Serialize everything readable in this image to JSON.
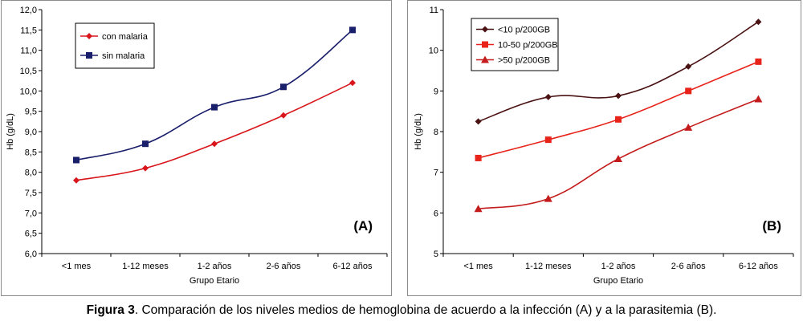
{
  "charts": [
    {
      "id": "A",
      "panel_label": "(A)",
      "type": "line",
      "xlabel": "Grupo Etario",
      "ylabel": "Hb (g/dL)",
      "ylim": [
        6.0,
        12.0
      ],
      "y_ticks": [
        "6,0",
        "6,5",
        "7,0",
        "7,5",
        "8,0",
        "8,5",
        "9,0",
        "9,5",
        "10,0",
        "10,5",
        "11,0",
        "11,5",
        "12,0"
      ],
      "categories": [
        "<1 mes",
        "1-12 meses",
        "1-2 años",
        "2-6 años",
        "6-12 años"
      ],
      "grid": false,
      "legend_position": "top-left",
      "series": [
        {
          "name": "con malaria",
          "color": "#d8161b",
          "marker": "diamond",
          "values": [
            7.8,
            8.1,
            8.7,
            9.4,
            10.2
          ]
        },
        {
          "name": "sin malaria",
          "color": "#1a1f6b",
          "marker": "square",
          "values": [
            8.3,
            8.7,
            9.6,
            10.1,
            11.5
          ]
        }
      ]
    },
    {
      "id": "B",
      "panel_label": "(B)",
      "type": "line",
      "xlabel": "Grupo Etario",
      "ylabel": "Hb (g/dL)",
      "ylim": [
        5,
        11
      ],
      "y_ticks": [
        "5",
        "6",
        "7",
        "8",
        "9",
        "10",
        "11"
      ],
      "categories": [
        "<1 mes",
        "1-12 meses",
        "1-2 años",
        "2-6 años",
        "6-12 años"
      ],
      "grid": false,
      "legend_position": "top-left",
      "series": [
        {
          "name": "<10 p/200GB",
          "color": "#4a1212",
          "marker": "diamond",
          "values": [
            8.25,
            8.85,
            8.88,
            9.6,
            10.7
          ]
        },
        {
          "name": "10-50 p/200GB",
          "color": "#e8231a",
          "marker": "square",
          "values": [
            7.35,
            7.8,
            8.3,
            9.0,
            9.72
          ]
        },
        {
          "name": ">50 p/200GB",
          "color": "#c41c1c",
          "marker": "triangle",
          "values": [
            6.1,
            6.35,
            7.33,
            8.1,
            8.8
          ]
        }
      ]
    }
  ],
  "caption": {
    "bold": "Figura 3",
    "text": ". Comparación de los niveles medios de hemoglobina de acuerdo a la infección (A) y a la parasitemia (B)."
  }
}
